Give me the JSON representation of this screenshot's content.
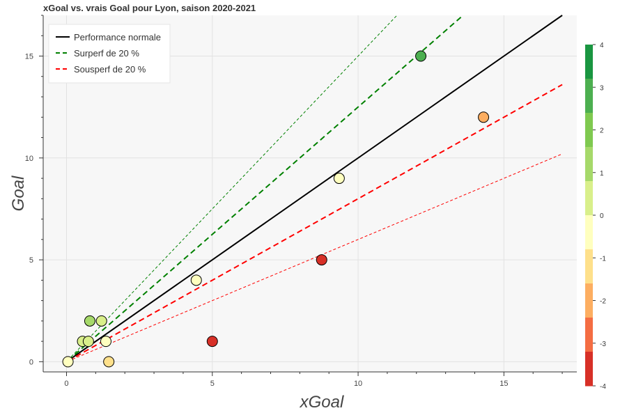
{
  "chart_data": {
    "type": "scatter",
    "title": "xGoal vs. vrais Goal pour Lyon, saison 2020-2021",
    "xlabel": "xGoal",
    "ylabel": "Goal",
    "xlim": [
      -0.8,
      17.5
    ],
    "ylim": [
      -0.5,
      17
    ],
    "x_ticks": [
      0,
      5,
      10,
      15
    ],
    "y_ticks": [
      0,
      5,
      10,
      15
    ],
    "grid": true,
    "legend_position": "top-left",
    "legend": [
      {
        "label": "Performance normale",
        "color": "#000000",
        "style": "solid"
      },
      {
        "label": "Surperf de 20 %",
        "color": "#008000",
        "style": "dashed"
      },
      {
        "label": "Sousperf de 20 %",
        "color": "#ff0000",
        "style": "dashed"
      }
    ],
    "lines": [
      {
        "name": "Performance normale",
        "slope": 1.0,
        "color": "#000000",
        "dash": "solid",
        "width": 2
      },
      {
        "name": "Surperf de 20 %",
        "slope": 1.25,
        "color": "#008000",
        "dash": "dashed",
        "width": 2
      },
      {
        "name": "Sousperf de 20 %",
        "slope": 0.8,
        "color": "#ff0000",
        "dash": "dashed",
        "width": 2
      },
      {
        "name": "",
        "slope": 1.5,
        "color": "#008000",
        "dash": "dashed-thin",
        "width": 1
      },
      {
        "name": "",
        "slope": 0.6,
        "color": "#ff0000",
        "dash": "dashed-thin",
        "width": 1
      }
    ],
    "points": [
      {
        "x": 0.05,
        "y": 0,
        "diff": 0
      },
      {
        "x": 0.55,
        "y": 1,
        "diff": 0.5
      },
      {
        "x": 0.75,
        "y": 1,
        "diff": 0.3
      },
      {
        "x": 0.8,
        "y": 2,
        "diff": 1.2
      },
      {
        "x": 1.2,
        "y": 2,
        "diff": 0.8
      },
      {
        "x": 1.35,
        "y": 1,
        "diff": -0.35
      },
      {
        "x": 1.45,
        "y": 0,
        "diff": -1.45
      },
      {
        "x": 4.45,
        "y": 4,
        "diff": -0.45
      },
      {
        "x": 5.0,
        "y": 1,
        "diff": -4.0
      },
      {
        "x": 8.75,
        "y": 5,
        "diff": -3.75
      },
      {
        "x": 9.35,
        "y": 9,
        "diff": -0.35
      },
      {
        "x": 12.15,
        "y": 15,
        "diff": 2.85
      },
      {
        "x": 14.3,
        "y": 12,
        "diff": -2.3
      }
    ],
    "colorbar": {
      "range": [
        -4,
        4
      ],
      "ticks": [
        4,
        3,
        2,
        1,
        0,
        -1,
        -2,
        -3,
        -4
      ],
      "colors": [
        "#1a9641",
        "#4caf50",
        "#7fc950",
        "#a6d96a",
        "#d9ef8b",
        "#ffffbf",
        "#fee08b",
        "#fdae61",
        "#f46d43",
        "#d73027"
      ]
    }
  }
}
